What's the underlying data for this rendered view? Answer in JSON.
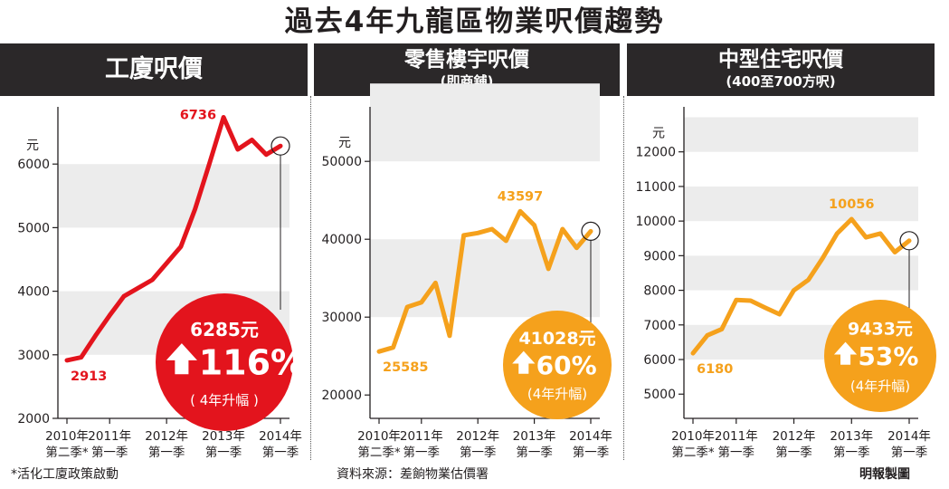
{
  "title": "過去4年九龍區物業呎價趨勢",
  "footer": {
    "note": "*活化工廈政策啟動",
    "source": "資料來源：差餉物業估價署",
    "credit": "明報製圖"
  },
  "colors": {
    "industrial": "#e3141d",
    "retail": "#f5a11c",
    "residential": "#f5a11c",
    "header_bg": "#2b2829",
    "band": "#ececec"
  },
  "chart_data": [
    {
      "type": "line",
      "title": "工廈呎價",
      "subtitle": "",
      "unit_label": "元",
      "ylim": [
        2000,
        6900
      ],
      "yticks": [
        2000,
        3000,
        4000,
        5000,
        6000
      ],
      "x_tick_labels": [
        {
          "year": "2010年",
          "quarter": "第二季*"
        },
        {
          "year": "2011年",
          "quarter": "第一季"
        },
        {
          "year": "2012年",
          "quarter": "第一季"
        },
        {
          "year": "2013年",
          "quarter": "第一季"
        },
        {
          "year": "2014年",
          "quarter": "第一季"
        }
      ],
      "x_tick_index": [
        0,
        3,
        7,
        11,
        15
      ],
      "values": [
        2913,
        2960,
        3300,
        3620,
        3920,
        4050,
        4180,
        4440,
        4700,
        5290,
        6000,
        6736,
        6230,
        6380,
        6150,
        6285
      ],
      "data_labels": [
        {
          "index": 0,
          "text": "2913",
          "pos": "below"
        },
        {
          "index": 11,
          "text": "6736",
          "pos": "left"
        }
      ],
      "callout": {
        "value": "6285元",
        "change": "116%",
        "note": "( 4年升幅 )"
      },
      "bubble_color": "#e3141d",
      "line_color": "#e3141d"
    },
    {
      "type": "line",
      "title": "零售樓宇呎價",
      "subtitle": "(即商舖)",
      "unit_label": "元",
      "ylim": [
        17000,
        57000
      ],
      "yticks": [
        20000,
        30000,
        40000,
        50000
      ],
      "x_tick_labels": [
        {
          "year": "2010年",
          "quarter": "第二季*"
        },
        {
          "year": "2011年",
          "quarter": "第一季"
        },
        {
          "year": "2012年",
          "quarter": "第一季"
        },
        {
          "year": "2013年",
          "quarter": "第一季"
        },
        {
          "year": "2014年",
          "quarter": "第一季"
        }
      ],
      "x_tick_index": [
        0,
        3,
        7,
        11,
        15
      ],
      "values": [
        25585,
        26100,
        31300,
        31900,
        34400,
        27600,
        40500,
        40800,
        41300,
        39800,
        43597,
        41800,
        36200,
        41300,
        38900,
        41028
      ],
      "data_labels": [
        {
          "index": 0,
          "text": "25585",
          "pos": "below"
        },
        {
          "index": 10,
          "text": "43597",
          "pos": "above"
        }
      ],
      "callout": {
        "value": "41028元",
        "change": "60%",
        "note": "(4年升幅)"
      },
      "bubble_color": "#f5a11c",
      "line_color": "#f5a11c"
    },
    {
      "type": "line",
      "title": "中型住宅呎價",
      "subtitle": "(400至700方呎)",
      "unit_label": "元",
      "ylim": [
        4300,
        13300
      ],
      "yticks": [
        5000,
        6000,
        7000,
        8000,
        9000,
        10000,
        11000,
        12000
      ],
      "x_tick_labels": [
        {
          "year": "2010年",
          "quarter": "第二季*"
        },
        {
          "year": "2011年",
          "quarter": "第一季"
        },
        {
          "year": "2012年",
          "quarter": "第一季"
        },
        {
          "year": "2013年",
          "quarter": "第一季"
        },
        {
          "year": "2014年",
          "quarter": "第一季"
        }
      ],
      "x_tick_index": [
        0,
        3,
        7,
        11,
        15
      ],
      "values": [
        6180,
        6700,
        6880,
        7720,
        7700,
        7500,
        7310,
        8000,
        8300,
        8930,
        9640,
        10056,
        9530,
        9640,
        9100,
        9433
      ],
      "data_labels": [
        {
          "index": 0,
          "text": "6180",
          "pos": "below"
        },
        {
          "index": 11,
          "text": "10056",
          "pos": "above"
        }
      ],
      "callout": {
        "value": "9433元",
        "change": "53%",
        "note": "(4年升幅)"
      },
      "bubble_color": "#f5a11c",
      "line_color": "#f5a11c"
    }
  ]
}
